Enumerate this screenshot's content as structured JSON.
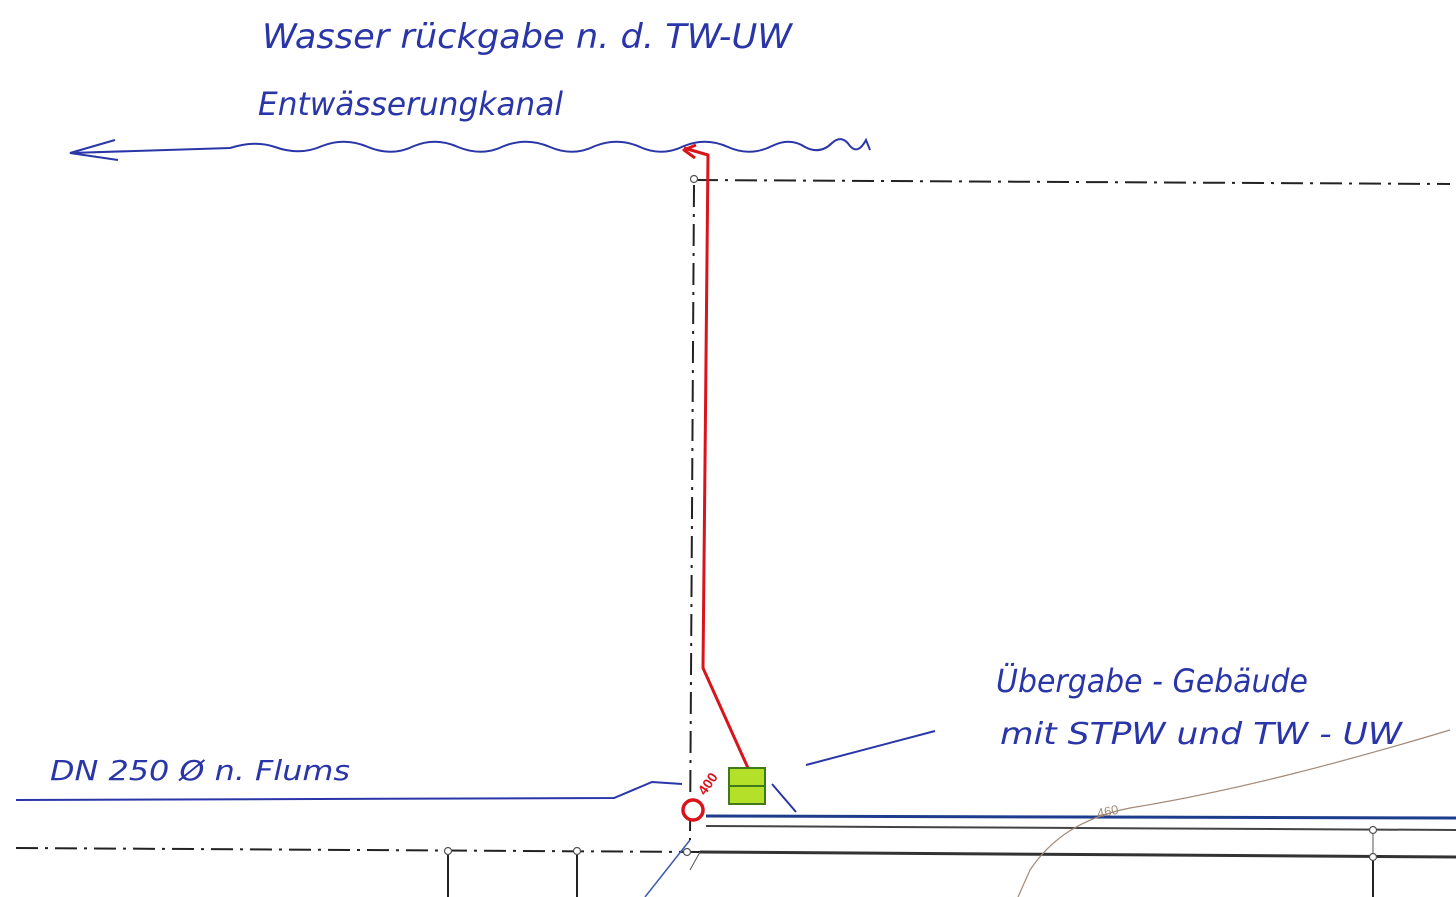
{
  "annotations": {
    "top_line1": "Wasser rückgabe n. d. TW-UW",
    "top_line2": "Entwässerungkanal",
    "left_pipe": "DN 250 Ø n. Flums",
    "building_line1": "Übergabe - Gebäude",
    "building_line2": "mit STPW und TW - UW"
  },
  "labels": {
    "shaft_number": "400",
    "contour_number": "460"
  },
  "colors": {
    "ink_blue": "#2a36a8",
    "pipe_red": "#d8141c",
    "dash_black": "#222222",
    "box_fill": "#b5e02a",
    "contour_brown": "#a38a76"
  }
}
